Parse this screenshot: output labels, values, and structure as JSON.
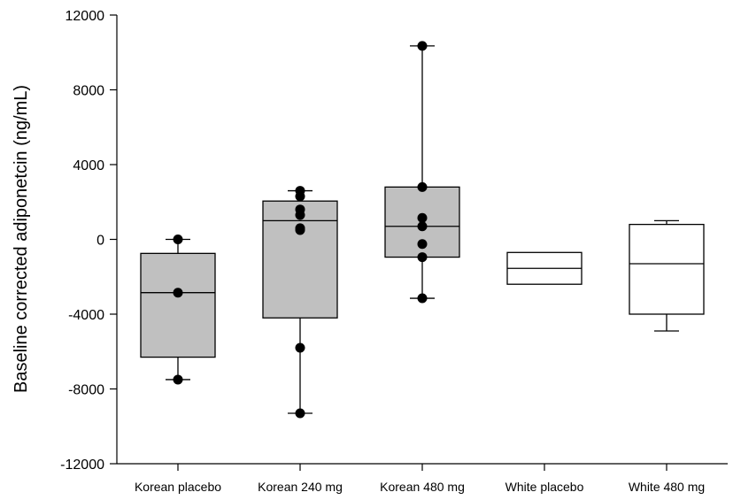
{
  "chart_data": {
    "type": "box",
    "title": "",
    "xlabel": "",
    "ylabel": "Baseline corrected adiponetcin (ng/mL)",
    "ylim": [
      -12000,
      12000
    ],
    "yticks": [
      -12000,
      -8000,
      -4000,
      0,
      4000,
      8000,
      12000
    ],
    "grid": false,
    "categories": [
      "Korean placebo",
      "Korean 240 mg",
      "Korean 480 mg",
      "White placebo",
      "White 480 mg"
    ],
    "boxes": [
      {
        "category": "Korean placebo",
        "fill": "#c0c0c0",
        "q1": -6300,
        "median": -2850,
        "q3": -750,
        "whisker_low": -7500,
        "whisker_high": 0,
        "points": [
          0,
          -2850,
          -7500
        ]
      },
      {
        "category": "Korean 240 mg",
        "fill": "#c0c0c0",
        "q1": -4200,
        "median": 1000,
        "q3": 2050,
        "whisker_low": -9300,
        "whisker_high": 2600,
        "points": [
          2600,
          2300,
          1600,
          1300,
          600,
          500,
          -5800,
          -9300
        ]
      },
      {
        "category": "Korean 480 mg",
        "fill": "#c0c0c0",
        "q1": -950,
        "median": 700,
        "q3": 2800,
        "whisker_low": -3150,
        "whisker_high": 10350,
        "points": [
          10350,
          2800,
          1150,
          700,
          -250,
          -950,
          -3150
        ]
      },
      {
        "category": "White placebo",
        "fill": "#ffffff",
        "q1": -2400,
        "median": -1550,
        "q3": -700,
        "whisker_low": null,
        "whisker_high": null,
        "points": []
      },
      {
        "category": "White 480 mg",
        "fill": "#ffffff",
        "q1": -4000,
        "median": -1300,
        "q3": 800,
        "whisker_low": -4900,
        "whisker_high": 1000,
        "points": []
      }
    ]
  }
}
